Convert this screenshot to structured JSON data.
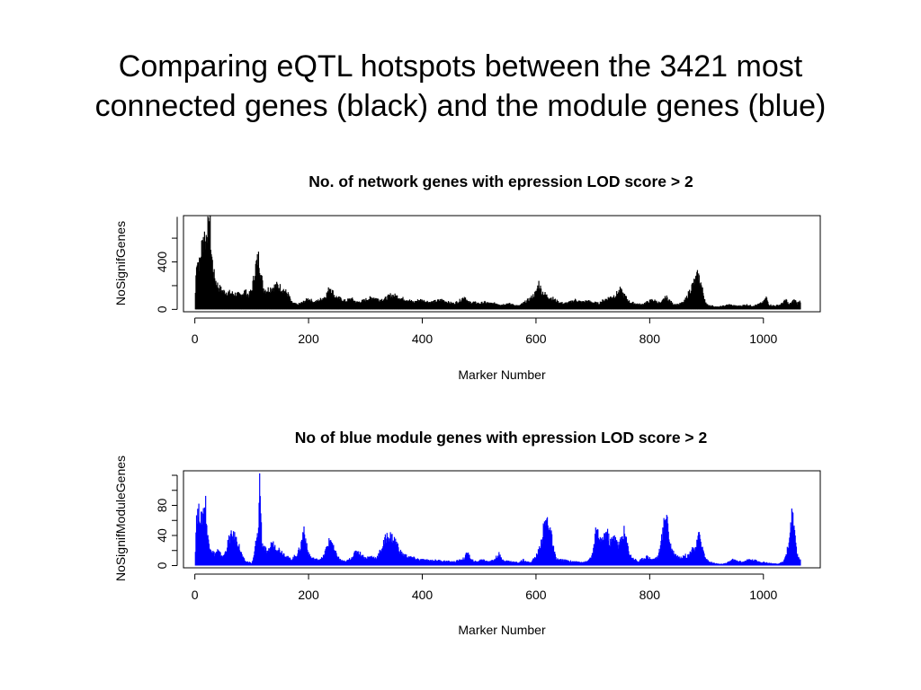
{
  "slide": {
    "title_line1": "Comparing eQTL hotspots between the 3421 most",
    "title_line2": "connected genes (black) and the module genes (blue)"
  },
  "chart_data": [
    {
      "type": "bar",
      "title": "No. of network genes with epression LOD score > 2",
      "xlabel": "Marker Number",
      "ylabel": "NoSignifGenes",
      "xlim": [
        -20,
        1100
      ],
      "ylim": [
        -20,
        790
      ],
      "xticks": [
        0,
        200,
        400,
        600,
        800,
        1000
      ],
      "yticks": [
        0,
        400
      ],
      "color": "#000000",
      "n_markers": 1065,
      "profile_control_points": [
        [
          0,
          0
        ],
        [
          3,
          420
        ],
        [
          8,
          380
        ],
        [
          12,
          520
        ],
        [
          16,
          640
        ],
        [
          19,
          560
        ],
        [
          21,
          700
        ],
        [
          24,
          650
        ],
        [
          26,
          760
        ],
        [
          29,
          480
        ],
        [
          33,
          300
        ],
        [
          38,
          220
        ],
        [
          43,
          180
        ],
        [
          50,
          150
        ],
        [
          60,
          140
        ],
        [
          70,
          130
        ],
        [
          80,
          120
        ],
        [
          88,
          150
        ],
        [
          95,
          120
        ],
        [
          100,
          160
        ],
        [
          105,
          300
        ],
        [
          108,
          380
        ],
        [
          112,
          430
        ],
        [
          116,
          320
        ],
        [
          120,
          180
        ],
        [
          126,
          160
        ],
        [
          135,
          180
        ],
        [
          145,
          200
        ],
        [
          155,
          170
        ],
        [
          165,
          120
        ],
        [
          170,
          60
        ],
        [
          180,
          40
        ],
        [
          190,
          60
        ],
        [
          200,
          90
        ],
        [
          210,
          60
        ],
        [
          220,
          80
        ],
        [
          230,
          110
        ],
        [
          238,
          190
        ],
        [
          246,
          110
        ],
        [
          255,
          90
        ],
        [
          265,
          70
        ],
        [
          275,
          90
        ],
        [
          285,
          60
        ],
        [
          295,
          70
        ],
        [
          305,
          90
        ],
        [
          315,
          100
        ],
        [
          325,
          80
        ],
        [
          335,
          90
        ],
        [
          345,
          120
        ],
        [
          355,
          110
        ],
        [
          365,
          90
        ],
        [
          375,
          80
        ],
        [
          385,
          60
        ],
        [
          395,
          80
        ],
        [
          405,
          70
        ],
        [
          415,
          60
        ],
        [
          425,
          70
        ],
        [
          435,
          80
        ],
        [
          445,
          60
        ],
        [
          455,
          50
        ],
        [
          465,
          70
        ],
        [
          475,
          110
        ],
        [
          480,
          60
        ],
        [
          490,
          60
        ],
        [
          500,
          50
        ],
        [
          510,
          60
        ],
        [
          520,
          50
        ],
        [
          530,
          50
        ],
        [
          540,
          40
        ],
        [
          550,
          50
        ],
        [
          560,
          40
        ],
        [
          570,
          30
        ],
        [
          580,
          60
        ],
        [
          590,
          90
        ],
        [
          600,
          140
        ],
        [
          605,
          220
        ],
        [
          610,
          150
        ],
        [
          620,
          110
        ],
        [
          630,
          90
        ],
        [
          640,
          60
        ],
        [
          650,
          50
        ],
        [
          660,
          60
        ],
        [
          670,
          80
        ],
        [
          680,
          60
        ],
        [
          690,
          70
        ],
        [
          700,
          60
        ],
        [
          710,
          50
        ],
        [
          720,
          80
        ],
        [
          730,
          100
        ],
        [
          740,
          120
        ],
        [
          748,
          160
        ],
        [
          755,
          120
        ],
        [
          765,
          60
        ],
        [
          775,
          50
        ],
        [
          785,
          40
        ],
        [
          795,
          60
        ],
        [
          805,
          80
        ],
        [
          815,
          60
        ],
        [
          820,
          50
        ],
        [
          825,
          90
        ],
        [
          830,
          100
        ],
        [
          840,
          50
        ],
        [
          850,
          40
        ],
        [
          860,
          60
        ],
        [
          865,
          100
        ],
        [
          870,
          150
        ],
        [
          875,
          200
        ],
        [
          880,
          240
        ],
        [
          885,
          290
        ],
        [
          890,
          220
        ],
        [
          895,
          120
        ],
        [
          900,
          40
        ],
        [
          910,
          30
        ],
        [
          920,
          20
        ],
        [
          930,
          30
        ],
        [
          940,
          40
        ],
        [
          950,
          30
        ],
        [
          960,
          30
        ],
        [
          970,
          40
        ],
        [
          980,
          30
        ],
        [
          990,
          40
        ],
        [
          1000,
          60
        ],
        [
          1005,
          100
        ],
        [
          1010,
          40
        ],
        [
          1020,
          30
        ],
        [
          1030,
          40
        ],
        [
          1040,
          80
        ],
        [
          1045,
          40
        ],
        [
          1050,
          60
        ],
        [
          1055,
          80
        ],
        [
          1060,
          50
        ],
        [
          1064,
          70
        ]
      ]
    },
    {
      "type": "bar",
      "title": "No of blue  module genes with epression LOD score > 2",
      "xlabel": "Marker Number",
      "ylabel": "NoSignifModuleGenes",
      "xlim": [
        -20,
        1100
      ],
      "ylim": [
        -3,
        126
      ],
      "xticks": [
        0,
        200,
        400,
        600,
        800,
        1000
      ],
      "yticks": [
        0,
        40,
        80
      ],
      "color": "#0000ff",
      "n_markers": 1065,
      "profile_control_points": [
        [
          0,
          0
        ],
        [
          3,
          68
        ],
        [
          8,
          70
        ],
        [
          12,
          60
        ],
        [
          16,
          78
        ],
        [
          19,
          82
        ],
        [
          22,
          40
        ],
        [
          25,
          30
        ],
        [
          30,
          20
        ],
        [
          35,
          15
        ],
        [
          40,
          20
        ],
        [
          45,
          15
        ],
        [
          50,
          12
        ],
        [
          55,
          20
        ],
        [
          60,
          35
        ],
        [
          65,
          40
        ],
        [
          70,
          38
        ],
        [
          75,
          32
        ],
        [
          80,
          20
        ],
        [
          85,
          10
        ],
        [
          90,
          5
        ],
        [
          95,
          5
        ],
        [
          100,
          3
        ],
        [
          104,
          12
        ],
        [
          107,
          30
        ],
        [
          111,
          40
        ],
        [
          113,
          80
        ],
        [
          114,
          115
        ],
        [
          115,
          95
        ],
        [
          118,
          30
        ],
        [
          122,
          25
        ],
        [
          128,
          15
        ],
        [
          135,
          30
        ],
        [
          142,
          25
        ],
        [
          150,
          20
        ],
        [
          158,
          15
        ],
        [
          165,
          10
        ],
        [
          170,
          8
        ],
        [
          175,
          12
        ],
        [
          180,
          15
        ],
        [
          186,
          25
        ],
        [
          192,
          50
        ],
        [
          198,
          20
        ],
        [
          205,
          10
        ],
        [
          215,
          8
        ],
        [
          225,
          10
        ],
        [
          235,
          30
        ],
        [
          240,
          35
        ],
        [
          245,
          20
        ],
        [
          255,
          8
        ],
        [
          265,
          5
        ],
        [
          275,
          10
        ],
        [
          285,
          20
        ],
        [
          292,
          15
        ],
        [
          300,
          10
        ],
        [
          310,
          12
        ],
        [
          320,
          10
        ],
        [
          330,
          25
        ],
        [
          335,
          35
        ],
        [
          340,
          40
        ],
        [
          345,
          38
        ],
        [
          350,
          35
        ],
        [
          355,
          30
        ],
        [
          360,
          20
        ],
        [
          365,
          15
        ],
        [
          375,
          12
        ],
        [
          385,
          10
        ],
        [
          395,
          8
        ],
        [
          410,
          7
        ],
        [
          425,
          7
        ],
        [
          440,
          6
        ],
        [
          455,
          5
        ],
        [
          465,
          7
        ],
        [
          475,
          10
        ],
        [
          480,
          20
        ],
        [
          485,
          8
        ],
        [
          495,
          5
        ],
        [
          505,
          8
        ],
        [
          515,
          6
        ],
        [
          525,
          7
        ],
        [
          535,
          15
        ],
        [
          540,
          8
        ],
        [
          550,
          6
        ],
        [
          560,
          5
        ],
        [
          570,
          4
        ],
        [
          578,
          8
        ],
        [
          585,
          5
        ],
        [
          590,
          4
        ],
        [
          595,
          8
        ],
        [
          600,
          12
        ],
        [
          605,
          20
        ],
        [
          610,
          35
        ],
        [
          615,
          55
        ],
        [
          620,
          60
        ],
        [
          625,
          50
        ],
        [
          630,
          25
        ],
        [
          635,
          10
        ],
        [
          640,
          8
        ],
        [
          650,
          7
        ],
        [
          660,
          6
        ],
        [
          670,
          5
        ],
        [
          680,
          5
        ],
        [
          690,
          5
        ],
        [
          700,
          15
        ],
        [
          705,
          45
        ],
        [
          710,
          40
        ],
        [
          715,
          30
        ],
        [
          720,
          40
        ],
        [
          725,
          45
        ],
        [
          730,
          30
        ],
        [
          735,
          35
        ],
        [
          740,
          40
        ],
        [
          745,
          25
        ],
        [
          750,
          35
        ],
        [
          755,
          45
        ],
        [
          760,
          30
        ],
        [
          765,
          15
        ],
        [
          770,
          10
        ],
        [
          775,
          8
        ],
        [
          780,
          5
        ],
        [
          785,
          8
        ],
        [
          790,
          10
        ],
        [
          795,
          12
        ],
        [
          800,
          10
        ],
        [
          805,
          8
        ],
        [
          810,
          10
        ],
        [
          815,
          12
        ],
        [
          820,
          30
        ],
        [
          825,
          55
        ],
        [
          828,
          70
        ],
        [
          831,
          65
        ],
        [
          835,
          30
        ],
        [
          840,
          20
        ],
        [
          845,
          15
        ],
        [
          850,
          12
        ],
        [
          855,
          10
        ],
        [
          860,
          15
        ],
        [
          865,
          12
        ],
        [
          870,
          15
        ],
        [
          875,
          25
        ],
        [
          880,
          20
        ],
        [
          885,
          35
        ],
        [
          888,
          45
        ],
        [
          892,
          25
        ],
        [
          898,
          10
        ],
        [
          905,
          5
        ],
        [
          915,
          3
        ],
        [
          925,
          2
        ],
        [
          935,
          3
        ],
        [
          945,
          8
        ],
        [
          955,
          6
        ],
        [
          965,
          5
        ],
        [
          975,
          8
        ],
        [
          985,
          7
        ],
        [
          995,
          5
        ],
        [
          1005,
          4
        ],
        [
          1015,
          3
        ],
        [
          1025,
          2
        ],
        [
          1035,
          5
        ],
        [
          1040,
          15
        ],
        [
          1045,
          30
        ],
        [
          1048,
          55
        ],
        [
          1051,
          70
        ],
        [
          1055,
          40
        ],
        [
          1059,
          15
        ],
        [
          1064,
          8
        ]
      ]
    }
  ]
}
